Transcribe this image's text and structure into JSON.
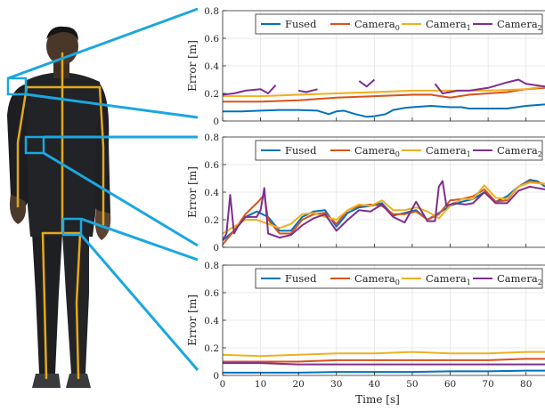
{
  "figure": {
    "xlabel": "Time [s]"
  },
  "avatar": {
    "description_icon": "human-avatar-icon"
  },
  "colors": {
    "callout": "#1aa7e0",
    "Fused": "#0072BD",
    "Camera0": "#D95319",
    "Camera1": "#EDB120",
    "Camera2": "#7E2F8E"
  },
  "chart_data": [
    {
      "type": "line",
      "title": "",
      "xlabel": "",
      "ylabel": "Error [m]",
      "xlim": [
        0,
        85
      ],
      "ylim": [
        0,
        0.8
      ],
      "xticks": [
        0,
        10,
        20,
        30,
        40,
        50,
        60,
        70,
        80
      ],
      "yticks": [
        0,
        0.2,
        0.4,
        0.6,
        0.8
      ],
      "ytick_labels": [
        "0",
        "0.2",
        "0.4",
        "0.6",
        "0.8"
      ],
      "grid": true,
      "legend": "top-right",
      "series": [
        {
          "name": "Fused",
          "sub": "",
          "x": [
            0,
            5,
            10,
            15,
            20,
            25,
            28,
            30,
            32,
            35,
            38,
            40,
            43,
            45,
            48,
            50,
            55,
            60,
            63,
            65,
            70,
            75,
            80,
            85
          ],
          "values": [
            0.07,
            0.07,
            0.075,
            0.08,
            0.08,
            0.075,
            0.05,
            0.07,
            0.075,
            0.05,
            0.03,
            0.035,
            0.05,
            0.08,
            0.095,
            0.1,
            0.11,
            0.1,
            0.1,
            0.09,
            0.09,
            0.09,
            0.11,
            0.12
          ]
        },
        {
          "name": "Camera",
          "sub": "0",
          "x": [
            0,
            10,
            20,
            30,
            40,
            50,
            55,
            60,
            65,
            70,
            75,
            80,
            85
          ],
          "values": [
            0.14,
            0.14,
            0.15,
            0.17,
            0.18,
            0.19,
            0.19,
            0.17,
            0.19,
            0.2,
            0.21,
            0.23,
            0.24
          ]
        },
        {
          "name": "Camera",
          "sub": "1",
          "x": [
            0,
            10,
            20,
            30,
            40,
            50,
            55,
            60,
            70,
            80,
            85
          ],
          "values": [
            0.18,
            0.18,
            0.19,
            0.2,
            0.21,
            0.22,
            0.22,
            0.22,
            0.22,
            0.23,
            0.25
          ]
        },
        {
          "name": "Camera",
          "sub": "2",
          "x": [
            0,
            3,
            6,
            10,
            12,
            14,
            null,
            20,
            22,
            25,
            null,
            36,
            38,
            40,
            null,
            56,
            58,
            60,
            62,
            65,
            70,
            75,
            78,
            80,
            85
          ],
          "values": [
            0.19,
            0.2,
            0.22,
            0.23,
            0.2,
            0.26,
            null,
            0.22,
            0.21,
            0.23,
            null,
            0.29,
            0.25,
            0.3,
            null,
            0.27,
            0.2,
            0.21,
            0.22,
            0.22,
            0.24,
            0.28,
            0.3,
            0.27,
            0.25
          ]
        }
      ]
    },
    {
      "type": "line",
      "title": "",
      "xlabel": "",
      "ylabel": "Error [m]",
      "xlim": [
        0,
        85
      ],
      "ylim": [
        0,
        0.8
      ],
      "xticks": [
        0,
        10,
        20,
        30,
        40,
        50,
        60,
        70,
        80
      ],
      "yticks": [
        0,
        0.2,
        0.4,
        0.6,
        0.8
      ],
      "ytick_labels": [
        "0",
        "0.2",
        "0.4",
        "0.6",
        "0.8"
      ],
      "grid": true,
      "legend": "top-right",
      "series": [
        {
          "name": "Fused",
          "sub": "",
          "x": [
            0,
            3,
            6,
            9,
            12,
            15,
            18,
            21,
            24,
            27,
            30,
            33,
            36,
            39,
            42,
            45,
            48,
            51,
            54,
            57,
            60,
            63,
            66,
            69,
            72,
            75,
            78,
            81,
            83,
            85
          ],
          "values": [
            0.05,
            0.12,
            0.22,
            0.26,
            0.22,
            0.12,
            0.12,
            0.22,
            0.26,
            0.27,
            0.15,
            0.25,
            0.29,
            0.3,
            0.32,
            0.23,
            0.25,
            0.27,
            0.2,
            0.25,
            0.3,
            0.33,
            0.35,
            0.4,
            0.33,
            0.37,
            0.44,
            0.49,
            0.48,
            0.44
          ]
        },
        {
          "name": "Camera",
          "sub": "0",
          "x": [
            0,
            3,
            6,
            9,
            11,
            12,
            15,
            18,
            21,
            24,
            27,
            30,
            33,
            36,
            39,
            42,
            45,
            48,
            51,
            54,
            57,
            60,
            63,
            66,
            69,
            72,
            75,
            78,
            81,
            85
          ],
          "values": [
            0.02,
            0.12,
            0.24,
            0.32,
            0.38,
            0.2,
            0.1,
            0.1,
            0.2,
            0.24,
            0.25,
            0.17,
            0.27,
            0.3,
            0.31,
            0.3,
            0.24,
            0.24,
            0.26,
            0.2,
            0.24,
            0.34,
            0.35,
            0.37,
            0.42,
            0.33,
            0.34,
            0.44,
            0.48,
            0.46
          ]
        },
        {
          "name": "Camera",
          "sub": "1",
          "x": [
            0,
            3,
            6,
            9,
            12,
            15,
            18,
            21,
            24,
            27,
            30,
            33,
            36,
            39,
            42,
            45,
            48,
            51,
            54,
            57,
            60,
            63,
            66,
            69,
            72,
            75,
            78,
            81,
            85
          ],
          "values": [
            0.1,
            0.15,
            0.2,
            0.2,
            0.17,
            0.14,
            0.17,
            0.24,
            0.25,
            0.22,
            0.2,
            0.27,
            0.31,
            0.3,
            0.34,
            0.27,
            0.27,
            0.29,
            0.26,
            0.21,
            0.3,
            0.35,
            0.35,
            0.45,
            0.36,
            0.35,
            0.44,
            0.47,
            0.46
          ]
        },
        {
          "name": "Camera",
          "sub": "2",
          "x": [
            0,
            1,
            2,
            3,
            4,
            6,
            9,
            10,
            11,
            12,
            15,
            18,
            21,
            24,
            27,
            30,
            33,
            36,
            39,
            42,
            45,
            48,
            51,
            54,
            56,
            57,
            58,
            59,
            61,
            64,
            66,
            69,
            72,
            75,
            78,
            81,
            85
          ],
          "values": [
            0.05,
            0.1,
            0.38,
            0.1,
            0.15,
            0.22,
            0.22,
            0.27,
            0.43,
            0.1,
            0.07,
            0.09,
            0.16,
            0.21,
            0.24,
            0.12,
            0.2,
            0.27,
            0.26,
            0.31,
            0.22,
            0.18,
            0.33,
            0.19,
            0.19,
            0.44,
            0.48,
            0.3,
            0.32,
            0.31,
            0.32,
            0.4,
            0.32,
            0.32,
            0.41,
            0.44,
            0.42
          ]
        }
      ]
    },
    {
      "type": "line",
      "title": "",
      "xlabel": "Time [s]",
      "ylabel": "Error [m]",
      "xlim": [
        0,
        85
      ],
      "ylim": [
        0,
        0.8
      ],
      "xticks": [
        0,
        10,
        20,
        30,
        40,
        50,
        60,
        70,
        80
      ],
      "yticks": [
        0,
        0.2,
        0.4,
        0.6,
        0.8
      ],
      "ytick_labels": [
        "0",
        "0.2",
        "0.4",
        "0.6",
        "0.8"
      ],
      "grid": true,
      "legend": "top-right",
      "series": [
        {
          "name": "Fused",
          "sub": "",
          "x": [
            0,
            10,
            20,
            30,
            40,
            50,
            60,
            70,
            80,
            85
          ],
          "values": [
            0.02,
            0.02,
            0.02,
            0.025,
            0.025,
            0.025,
            0.03,
            0.03,
            0.035,
            0.035
          ]
        },
        {
          "name": "Camera",
          "sub": "0",
          "x": [
            0,
            10,
            20,
            30,
            40,
            50,
            60,
            70,
            80,
            85
          ],
          "values": [
            0.1,
            0.1,
            0.1,
            0.11,
            0.11,
            0.11,
            0.11,
            0.11,
            0.12,
            0.12
          ]
        },
        {
          "name": "Camera",
          "sub": "1",
          "x": [
            0,
            10,
            20,
            30,
            40,
            50,
            60,
            70,
            80,
            85
          ],
          "values": [
            0.15,
            0.14,
            0.15,
            0.16,
            0.16,
            0.17,
            0.16,
            0.16,
            0.17,
            0.17
          ]
        },
        {
          "name": "Camera",
          "sub": "2",
          "x": [
            0,
            10,
            20,
            30,
            40,
            50,
            60,
            70,
            80,
            85
          ],
          "values": [
            0.09,
            0.09,
            0.08,
            0.08,
            0.08,
            0.08,
            0.08,
            0.08,
            0.08,
            0.08
          ]
        }
      ]
    }
  ]
}
